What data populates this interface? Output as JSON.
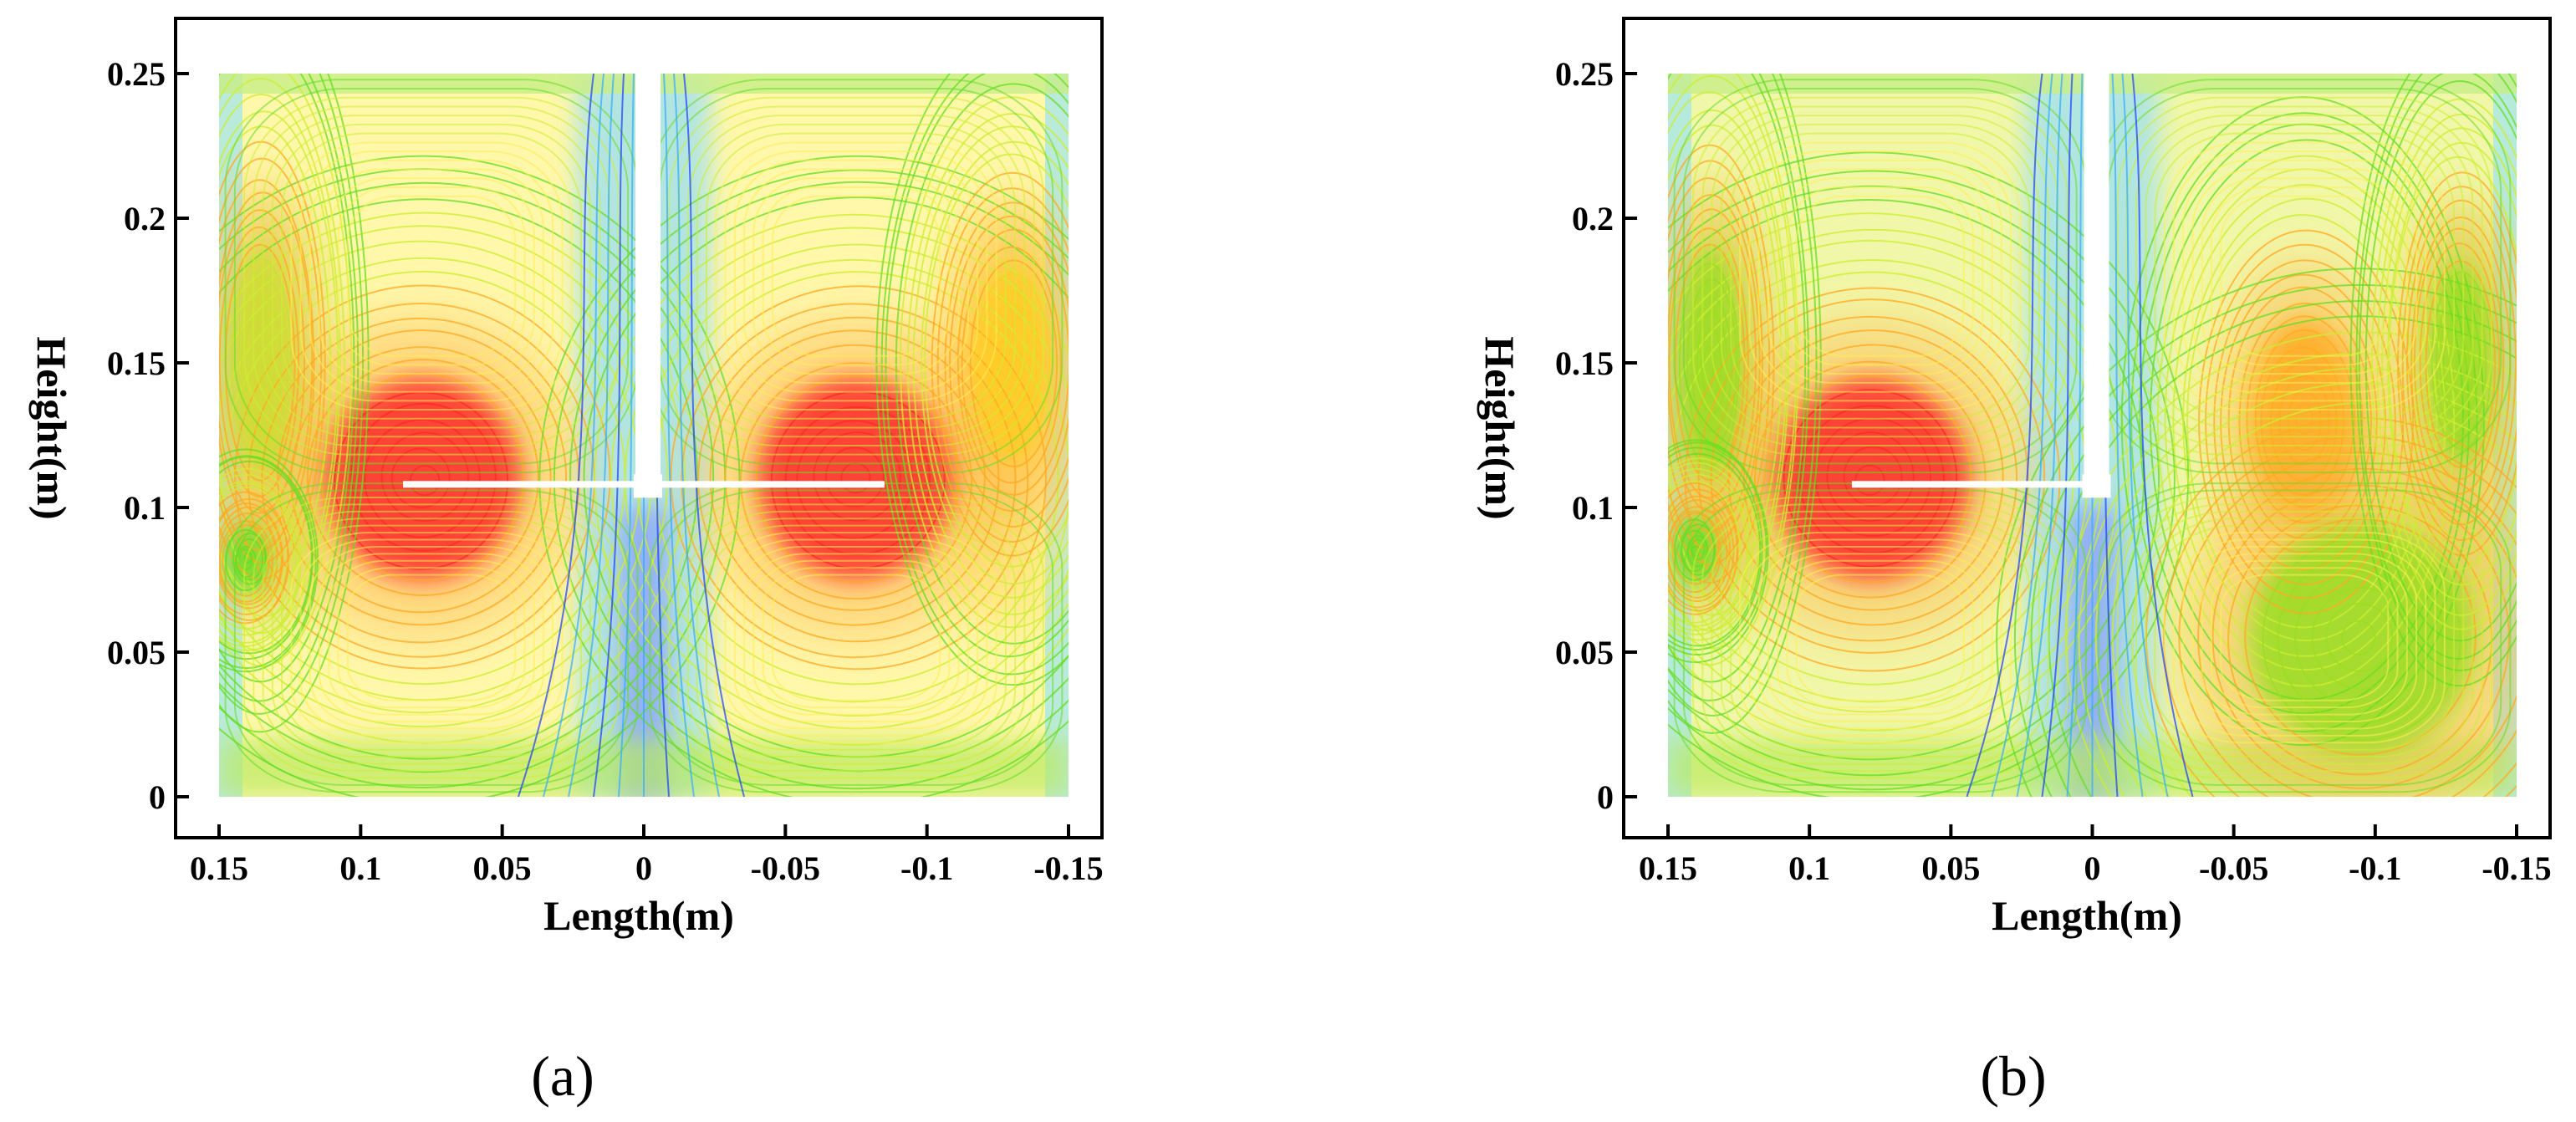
{
  "chart_data": [
    {
      "type": "streamline-contour",
      "panel_label": "(a)",
      "xlabel": "Length(m)",
      "ylabel": "Height(m)",
      "xlim": [
        0.15,
        -0.15
      ],
      "ylim": [
        0,
        0.25
      ],
      "x_reversed": true,
      "xticks": [
        0.15,
        0.1,
        0.05,
        0,
        -0.05,
        -0.1,
        -0.15
      ],
      "xtick_labels": [
        "0.15",
        "0.1",
        "0.05",
        "0",
        "-0.05",
        "-0.1",
        "-0.15"
      ],
      "yticks": [
        0,
        0.05,
        0.1,
        0.15,
        0.2,
        0.25
      ],
      "ytick_labels": [
        "0",
        "0.05",
        "0.1",
        "0.15",
        "0.2",
        "0.25"
      ],
      "colormap": [
        "#1a3cff",
        "#33aaff",
        "#33ddcc",
        "#66dd22",
        "#ccee33",
        "#ffee55",
        "#ffaa22",
        "#ff2222"
      ],
      "shaft_x": 0.0,
      "impeller_y": 0.108,
      "impeller_span": [
        0.085,
        -0.085
      ],
      "vortices": [
        {
          "x": 0.078,
          "y": 0.11,
          "rx": 0.035,
          "ry": 0.035,
          "color": "#ff2a2a"
        },
        {
          "x": -0.075,
          "y": 0.11,
          "rx": 0.035,
          "ry": 0.035,
          "color": "#ff2a2a"
        },
        {
          "x": 0.135,
          "y": 0.15,
          "rx": 0.012,
          "ry": 0.04,
          "color": "#ccdd33"
        },
        {
          "x": -0.13,
          "y": 0.15,
          "rx": 0.015,
          "ry": 0.035,
          "color": "#ffcc22"
        },
        {
          "x": 0.14,
          "y": 0.082,
          "rx": 0.008,
          "ry": 0.012,
          "color": "#66dd22"
        }
      ]
    },
    {
      "type": "streamline-contour",
      "panel_label": "(b)",
      "xlabel": "Length(m)",
      "ylabel": "Height(m)",
      "xlim": [
        0.15,
        -0.15
      ],
      "ylim": [
        0,
        0.25
      ],
      "x_reversed": true,
      "xticks": [
        0.15,
        0.1,
        0.05,
        0,
        -0.05,
        -0.1,
        -0.15
      ],
      "xtick_labels": [
        "0.15",
        "0.1",
        "0.05",
        "0",
        "-0.05",
        "-0.1",
        "-0.15"
      ],
      "yticks": [
        0,
        0.05,
        0.1,
        0.15,
        0.2,
        0.25
      ],
      "ytick_labels": [
        "0",
        "0.05",
        "0.1",
        "0.15",
        "0.2",
        "0.25"
      ],
      "colormap": [
        "#1a3cff",
        "#33aaff",
        "#33ddcc",
        "#66dd22",
        "#ccee33",
        "#ffee55",
        "#ffaa22",
        "#ff2222"
      ],
      "shaft_x": 0.0,
      "impeller_y": 0.108,
      "impeller_span": [
        0.085,
        0.0
      ],
      "vortices": [
        {
          "x": 0.078,
          "y": 0.11,
          "rx": 0.035,
          "ry": 0.035,
          "color": "#ff2a2a"
        },
        {
          "x": -0.075,
          "y": 0.13,
          "rx": 0.02,
          "ry": 0.035,
          "color": "#ffaa22"
        },
        {
          "x": -0.095,
          "y": 0.055,
          "rx": 0.04,
          "ry": 0.04,
          "color": "#99dd22"
        },
        {
          "x": 0.135,
          "y": 0.15,
          "rx": 0.012,
          "ry": 0.04,
          "color": "#99dd22"
        },
        {
          "x": -0.13,
          "y": 0.15,
          "rx": 0.012,
          "ry": 0.035,
          "color": "#99dd22"
        },
        {
          "x": 0.14,
          "y": 0.085,
          "rx": 0.008,
          "ry": 0.012,
          "color": "#66dd22"
        }
      ]
    }
  ]
}
